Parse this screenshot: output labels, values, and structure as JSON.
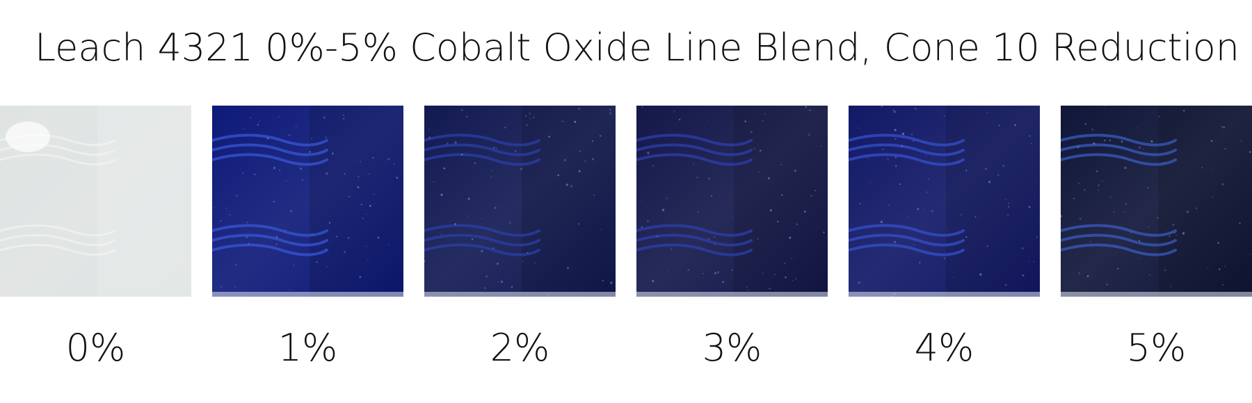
{
  "title": "Leach 4321 0%-5% Cobalt Oxide Line Blend, Cone 10 Reduction",
  "tiles": [
    {
      "label": "0%",
      "cobalt_percent": 0,
      "base_color": "#dfe3e2",
      "highlight_color": "#f4f6f5"
    },
    {
      "label": "1%",
      "cobalt_percent": 1,
      "base_color": "#0e1a78",
      "highlight_color": "#3a55d6"
    },
    {
      "label": "2%",
      "cobalt_percent": 2,
      "base_color": "#121a52",
      "highlight_color": "#2b3fa8"
    },
    {
      "label": "3%",
      "cobalt_percent": 3,
      "base_color": "#14184a",
      "highlight_color": "#2e3fae"
    },
    {
      "label": "4%",
      "cobalt_percent": 4,
      "base_color": "#121966",
      "highlight_color": "#3550cc"
    },
    {
      "label": "5%",
      "cobalt_percent": 5,
      "base_color": "#101638",
      "highlight_color": "#3a5bbf"
    }
  ]
}
